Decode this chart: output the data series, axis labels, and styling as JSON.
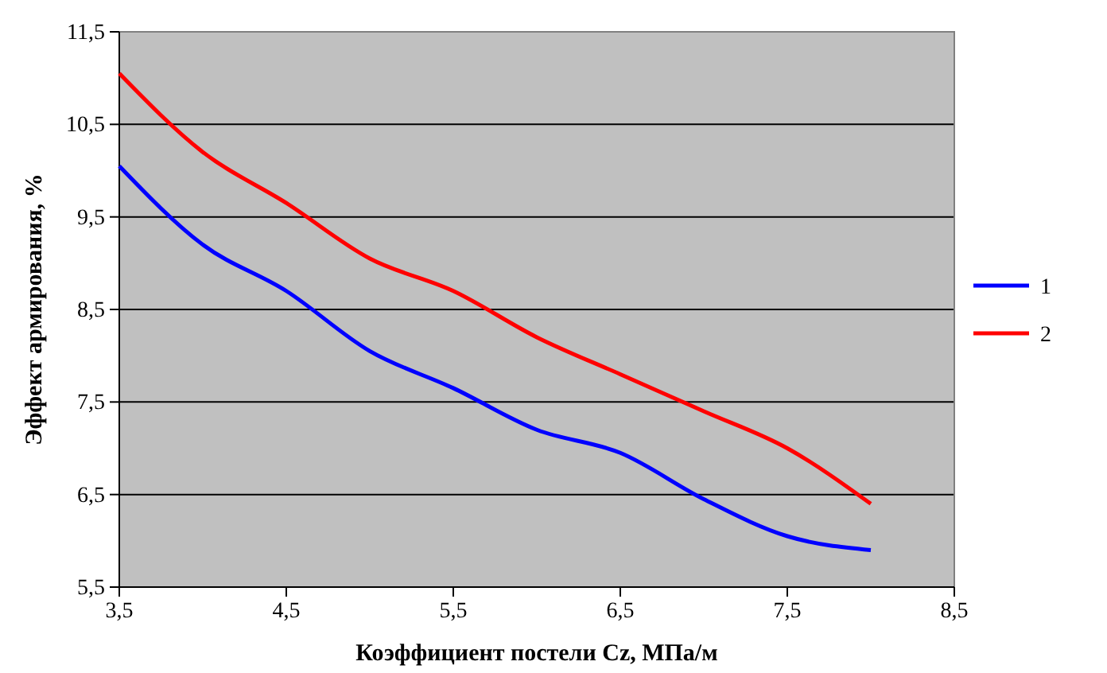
{
  "chart_data": {
    "type": "line",
    "xlabel": "Коэффициент постели Cz, МПа/м",
    "ylabel": "Эффект армирования, %",
    "x": [
      3.5,
      4.0,
      4.5,
      5.0,
      5.5,
      6.0,
      6.5,
      7.0,
      7.5,
      8.0
    ],
    "series": [
      {
        "name": "1",
        "color": "#0000ff",
        "values": [
          10.05,
          9.2,
          8.7,
          8.05,
          7.65,
          7.2,
          6.95,
          6.45,
          6.05,
          5.9
        ]
      },
      {
        "name": "2",
        "color": "#ff0000",
        "values": [
          11.05,
          10.2,
          9.65,
          9.05,
          8.7,
          8.2,
          7.8,
          7.4,
          7.0,
          6.4
        ]
      }
    ],
    "xlim": [
      3.5,
      8.5
    ],
    "ylim": [
      5.5,
      11.5
    ],
    "xticks": [
      {
        "value": 3.5,
        "label": "3,5"
      },
      {
        "value": 4.5,
        "label": "4,5"
      },
      {
        "value": 5.5,
        "label": "5,5"
      },
      {
        "value": 6.5,
        "label": "6,5"
      },
      {
        "value": 7.5,
        "label": "7,5"
      },
      {
        "value": 8.5,
        "label": "8,5"
      }
    ],
    "yticks": [
      {
        "value": 5.5,
        "label": "5,5"
      },
      {
        "value": 6.5,
        "label": "6,5"
      },
      {
        "value": 7.5,
        "label": "7,5"
      },
      {
        "value": 8.5,
        "label": "8,5"
      },
      {
        "value": 9.5,
        "label": "9,5"
      },
      {
        "value": 10.5,
        "label": "10,5"
      },
      {
        "value": 11.5,
        "label": "11,5"
      }
    ],
    "grid": "y",
    "legend": "right",
    "marker": "none",
    "line_style": "solid"
  }
}
